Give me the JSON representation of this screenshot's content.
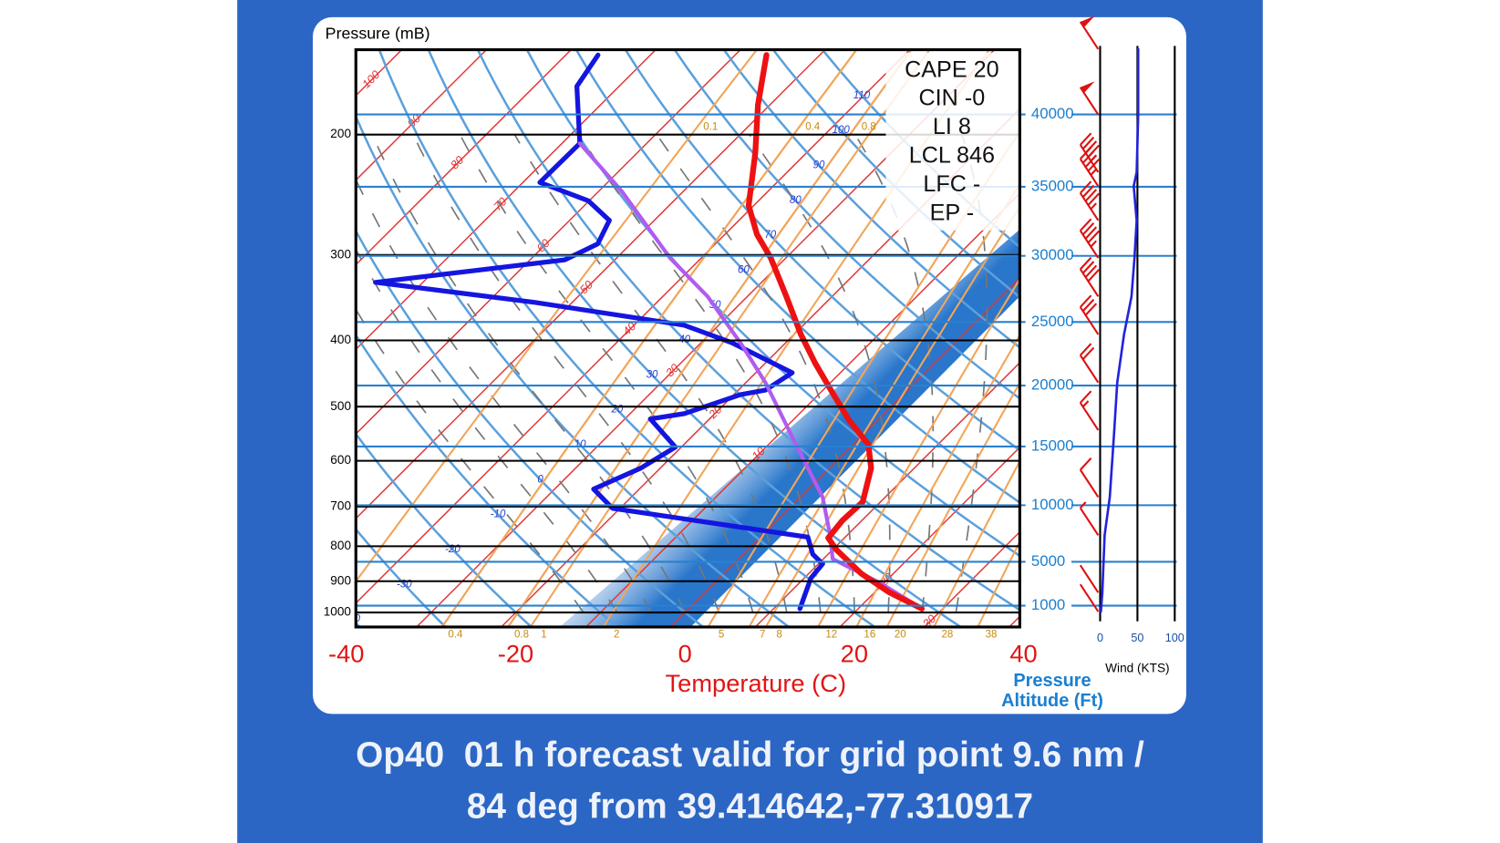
{
  "chart_data": {
    "type": "skew-t",
    "y_label": "Pressure (mB)",
    "x_label": "Temperature (C)",
    "y2_label": [
      "Pressure",
      "Altitude (Ft)"
    ],
    "wind_label": "Wind (KTS)",
    "xlim": [
      -40,
      40
    ],
    "xticks": [
      -40,
      -20,
      0,
      20,
      40
    ],
    "ylim": [
      1050,
      150
    ],
    "log_y": true,
    "yticks": [
      200,
      300,
      400,
      500,
      600,
      700,
      800,
      900,
      1000
    ],
    "y2ticks": [
      1000,
      5000,
      10000,
      15000,
      20000,
      25000,
      30000,
      35000,
      40000
    ],
    "wind_xlim": [
      0,
      100
    ],
    "wind_xticks": [
      0,
      50,
      100
    ],
    "stats": [
      "CAPE 20",
      "CIN -0",
      "LI 8",
      "LCL 846",
      "LFC -",
      "EP -"
    ],
    "isotherm_labels": [
      -100,
      -90,
      -80,
      -70,
      -60,
      -50,
      -40,
      -30,
      -20,
      -10,
      20,
      30
    ],
    "dry_adiabat_labels": [
      -40,
      -30,
      -20,
      -10,
      0,
      10,
      20,
      30,
      40,
      50,
      60,
      70,
      80,
      90,
      100,
      110
    ],
    "mixing_ratio_labels_bottom": [
      0.4,
      0.8,
      1,
      2,
      5,
      7,
      8,
      12,
      16,
      20,
      28,
      38
    ],
    "mixing_ratio_labels_top": [
      0.1,
      0.4,
      0.8
    ],
    "series": [
      {
        "color": "#ee1111",
        "width": 6,
        "pressure": [
          153,
          181,
          213,
          254,
          280,
          303,
          345,
          392,
          432,
          476,
          524,
          568,
          615,
          689,
          734,
          778,
          809,
          877,
          935,
          987
        ],
        "values": [
          -56.3,
          -51.4,
          -46.0,
          -40.6,
          -36.2,
          -31.8,
          -25.4,
          -19.2,
          -14.1,
          -8.7,
          -3.3,
          1.8,
          4.9,
          7.9,
          7.7,
          8.1,
          10.4,
          16.2,
          21.8,
          27.5
        ]
      },
      {
        "color": "#1515e0",
        "width": 5,
        "pressure": [
          153,
          170,
          206,
          235,
          250,
          267,
          289,
          305,
          329,
          352,
          380,
          403,
          421,
          446,
          473,
          480,
          512,
          521,
          573,
          615,
          660,
          704,
          776,
          822,
          849,
          891,
          987
        ],
        "values": [
          -76.2,
          -75.0,
          -67.9,
          -68.0,
          -60.1,
          -55.3,
          -53.9,
          -55.9,
          -75.6,
          -54.4,
          -34.1,
          -26.4,
          -21.8,
          -15.7,
          -16.8,
          -19.2,
          -23.6,
          -27.0,
          -20.7,
          -22.3,
          -25.4,
          -20.9,
          5.6,
          8.2,
          10.5,
          10.8,
          13.1
        ]
      },
      {
        "color": "#b05cf0",
        "width": 4,
        "pressure": [
          206,
          242,
          303,
          345,
          405,
          461,
          559,
          678,
          771,
          835,
          905,
          987
        ],
        "values": [
          -67.9,
          -57.3,
          -43.7,
          -34.7,
          -25.1,
          -17.7,
          -7.6,
          2.6,
          8.0,
          11.1,
          19.5,
          27.5
        ]
      }
    ],
    "wind": {
      "color": "#2222dd",
      "barb_color": "#dd1111",
      "pressure": [
        150,
        187,
        227,
        238,
        267,
        303,
        345,
        392,
        461,
        541,
        678,
        771,
        935,
        997
      ],
      "values": [
        51,
        51,
        49,
        45,
        49,
        46,
        42,
        32,
        23,
        19,
        13,
        6,
        3,
        1
      ]
    }
  },
  "caption": [
    "Op40  01 h forecast valid for grid point 9.6 nm /",
    "84 deg from 39.414642,-77.310917"
  ]
}
